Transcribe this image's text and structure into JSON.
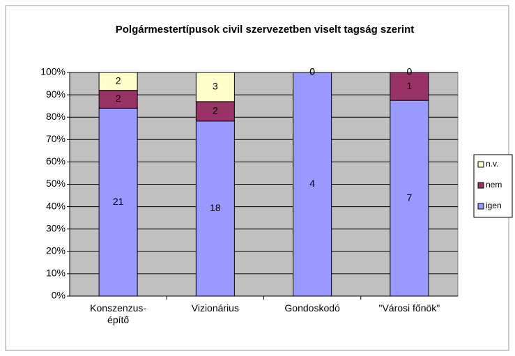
{
  "chart_data": {
    "type": "bar",
    "stacking": "percent",
    "title": "Polgármestertípusok civil szervezetben viselt tagság szerint",
    "categories": [
      "Konszenzus-építő",
      "Vizionárius",
      "Gondoskodó",
      "\"Városi főnök\""
    ],
    "series": [
      {
        "name": "igen",
        "color": "#9999ff",
        "values": [
          21,
          18,
          4,
          7
        ]
      },
      {
        "name": "nem",
        "color": "#993366",
        "values": [
          2,
          2,
          0,
          1
        ]
      },
      {
        "name": "n.v.",
        "color": "#ffffcc",
        "values": [
          2,
          3,
          0,
          0
        ]
      }
    ],
    "ylim": [
      0,
      100
    ],
    "yticks": [
      {
        "value": 0,
        "label": "0%"
      },
      {
        "value": 10,
        "label": "10%"
      },
      {
        "value": 20,
        "label": "20%"
      },
      {
        "value": 30,
        "label": "30%"
      },
      {
        "value": 40,
        "label": "40%"
      },
      {
        "value": 50,
        "label": "50%"
      },
      {
        "value": 60,
        "label": "60%"
      },
      {
        "value": 70,
        "label": "70%"
      },
      {
        "value": 80,
        "label": "80%"
      },
      {
        "value": 90,
        "label": "90%"
      },
      {
        "value": 100,
        "label": "100%"
      }
    ],
    "grid": true,
    "plot_background": "#c0c0c0",
    "legend": "right"
  }
}
